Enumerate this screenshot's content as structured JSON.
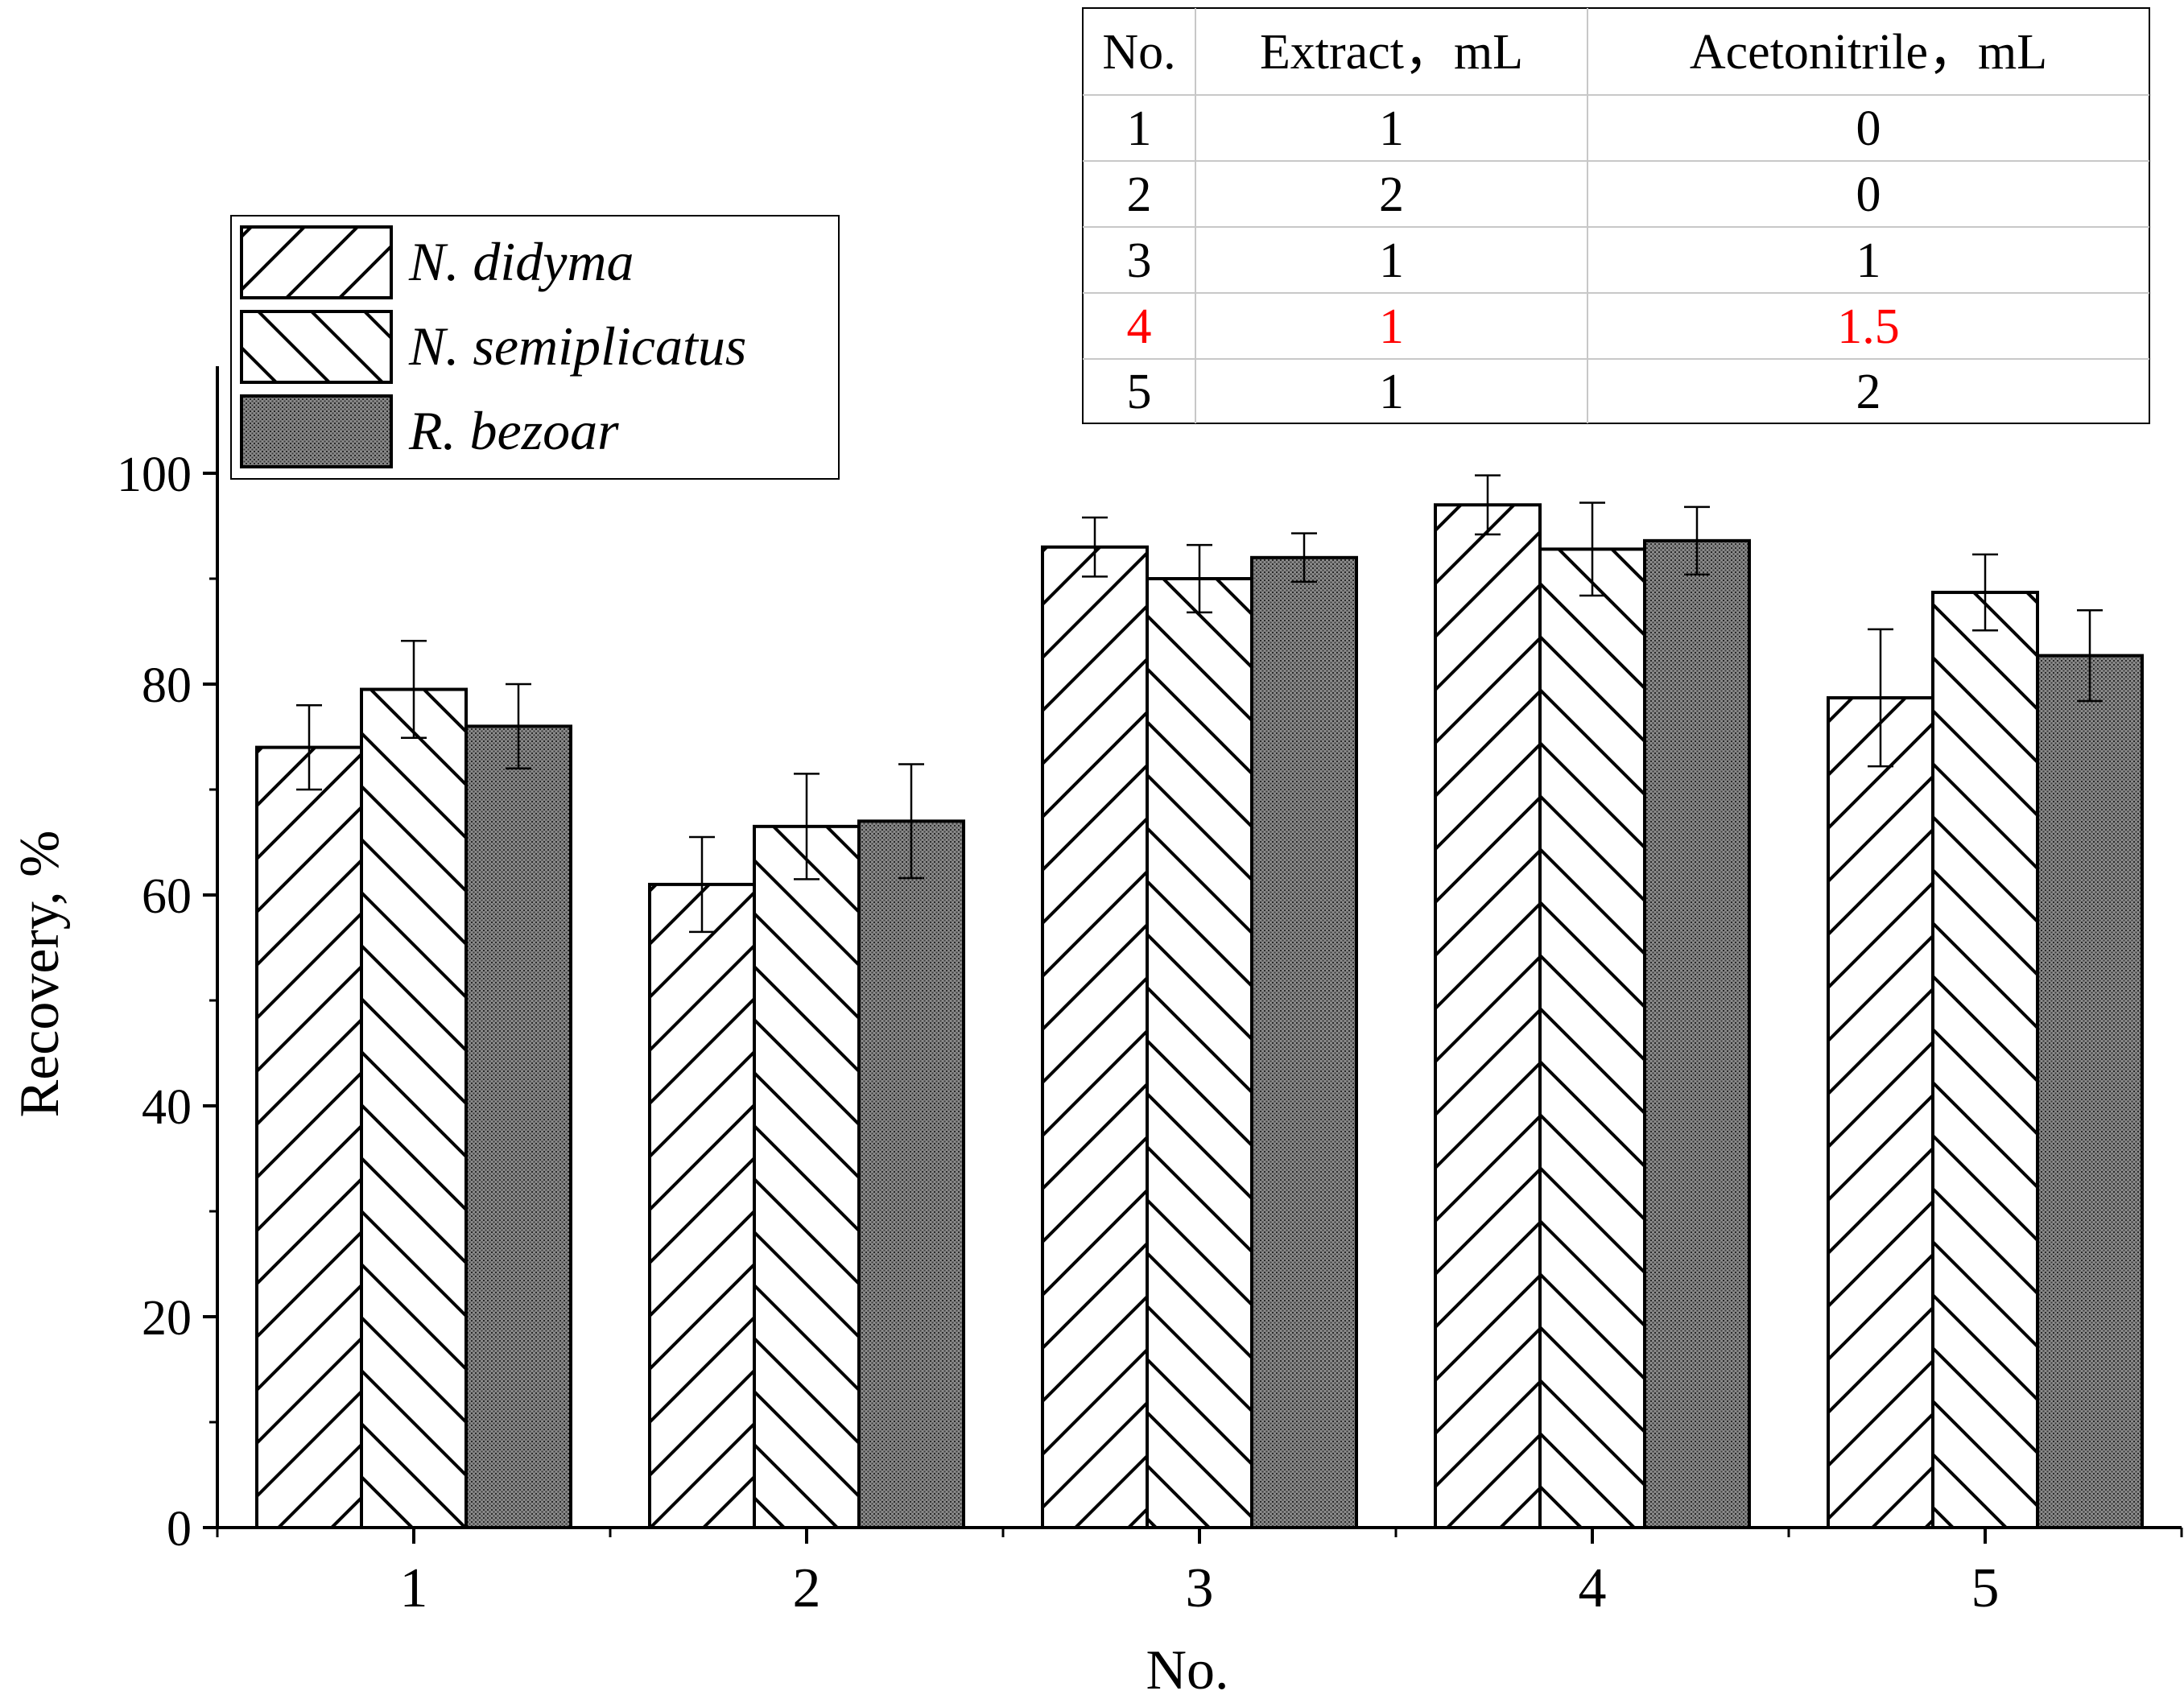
{
  "chart_data": {
    "type": "bar",
    "xlabel": "No.",
    "ylabel": "Recovery, %",
    "categories": [
      "1",
      "2",
      "3",
      "4",
      "5"
    ],
    "ylim": [
      0,
      110
    ],
    "yticks": [
      0,
      20,
      40,
      60,
      80,
      100
    ],
    "yminor_step": 10,
    "legend_position": "upper-left",
    "series": [
      {
        "name": "N. didyma",
        "pattern": "forward-hatch",
        "values": [
          74,
          61,
          93,
          97,
          78.7
        ],
        "errors": [
          4.0,
          4.5,
          2.8,
          2.8,
          6.5
        ]
      },
      {
        "name": "N. semiplicatus",
        "pattern": "back-hatch",
        "values": [
          79.5,
          66.5,
          90,
          92.8,
          88.7
        ],
        "errors": [
          4.6,
          5.0,
          3.2,
          4.4,
          3.6
        ]
      },
      {
        "name": "R. bezoar",
        "pattern": "dense-dots",
        "values": [
          76,
          67,
          92,
          93.6,
          82.7
        ],
        "errors": [
          4.0,
          5.4,
          2.3,
          3.2,
          4.3
        ]
      }
    ]
  },
  "inset_table": {
    "headers": [
      "No.",
      "Extract，mL",
      "Acetonitrile，mL"
    ],
    "rows": [
      [
        "1",
        "1",
        "0"
      ],
      [
        "2",
        "2",
        "0"
      ],
      [
        "3",
        "1",
        "1"
      ],
      [
        "4",
        "1",
        "1.5"
      ],
      [
        "5",
        "1",
        "2"
      ]
    ],
    "highlight_row_index": 3,
    "highlight_color": "#ff0000"
  },
  "colors": {
    "axis": "#000000",
    "table_grid": "#c8c8c8",
    "bar_fill": "#ffffff",
    "dots_fill": "#7a7a7a"
  }
}
